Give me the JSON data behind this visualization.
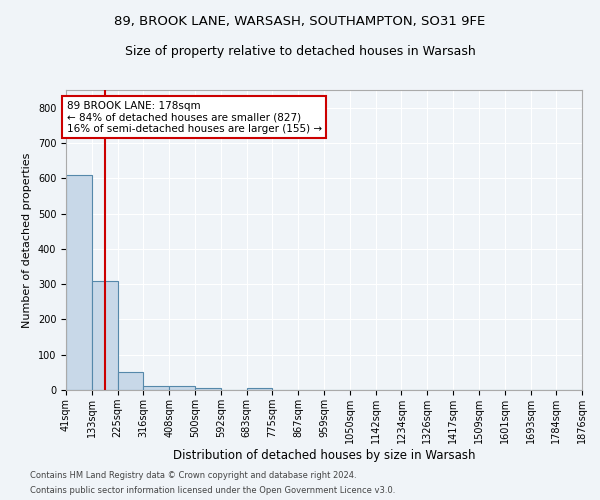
{
  "title1": "89, BROOK LANE, WARSASH, SOUTHAMPTON, SO31 9FE",
  "title2": "Size of property relative to detached houses in Warsash",
  "xlabel": "Distribution of detached houses by size in Warsash",
  "ylabel": "Number of detached properties",
  "footnote1": "Contains HM Land Registry data © Crown copyright and database right 2024.",
  "footnote2": "Contains public sector information licensed under the Open Government Licence v3.0.",
  "bin_edges": [
    41,
    133,
    225,
    316,
    408,
    500,
    592,
    683,
    775,
    867,
    959,
    1050,
    1142,
    1234,
    1326,
    1417,
    1509,
    1601,
    1693,
    1784,
    1876
  ],
  "bar_heights": [
    608,
    310,
    50,
    12,
    12,
    7,
    0,
    7,
    0,
    0,
    0,
    0,
    0,
    0,
    0,
    0,
    0,
    0,
    0,
    0
  ],
  "bar_color": "#c8d8e8",
  "bar_edge_color": "#5588aa",
  "property_size": 178,
  "red_line_color": "#cc0000",
  "annotation_text": "89 BROOK LANE: 178sqm\n← 84% of detached houses are smaller (827)\n16% of semi-detached houses are larger (155) →",
  "annotation_box_color": "white",
  "annotation_box_edge": "#cc0000",
  "ylim": [
    0,
    850
  ],
  "yticks": [
    0,
    100,
    200,
    300,
    400,
    500,
    600,
    700,
    800
  ],
  "background_color": "#f0f4f8",
  "grid_color": "white",
  "title1_fontsize": 9.5,
  "title2_fontsize": 9,
  "xlabel_fontsize": 8.5,
  "ylabel_fontsize": 8,
  "tick_fontsize": 7,
  "annot_fontsize": 7.5,
  "footnote_fontsize": 6
}
